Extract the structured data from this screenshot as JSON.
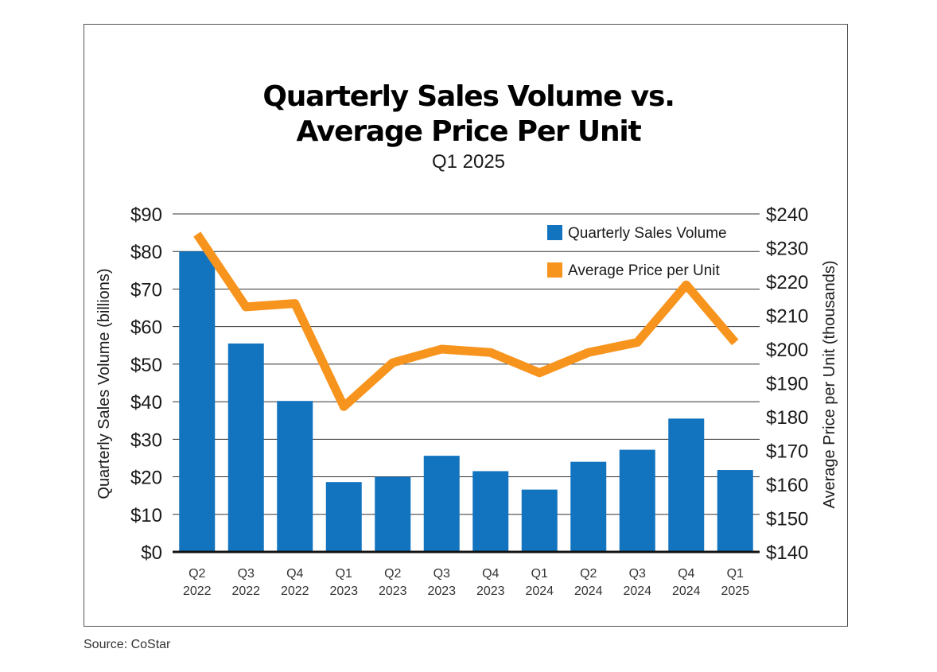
{
  "title_lines": [
    "Quarterly Sales Volume vs.",
    "Average Price Per Unit"
  ],
  "subtitle": "Q1 2025",
  "source": "Source: CoStar",
  "chart_data": {
    "type": "bar",
    "categories": [
      [
        "Q2",
        "2022"
      ],
      [
        "Q3",
        "2022"
      ],
      [
        "Q4",
        "2022"
      ],
      [
        "Q1",
        "2023"
      ],
      [
        "Q2",
        "2023"
      ],
      [
        "Q3",
        "2023"
      ],
      [
        "Q4",
        "2023"
      ],
      [
        "Q1",
        "2024"
      ],
      [
        "Q2",
        "2024"
      ],
      [
        "Q3",
        "2024"
      ],
      [
        "Q4",
        "2024"
      ],
      [
        "Q1",
        "2025"
      ]
    ],
    "series": [
      {
        "name": "Quarterly Sales Volume",
        "type": "bar",
        "axis": "left",
        "color": "#1273be",
        "values": [
          80,
          55.5,
          40.2,
          18.6,
          20,
          25.6,
          21.5,
          16.6,
          24,
          27.2,
          35.5,
          21.8
        ]
      },
      {
        "name": "Average Price per Unit",
        "type": "line",
        "axis": "right",
        "color": "#f7941d",
        "values": [
          234,
          212.5,
          213.5,
          183,
          196,
          200,
          199,
          193,
          199,
          202,
          219,
          202
        ]
      }
    ],
    "y_left": {
      "label": "Quarterly Sales Volume (billions)",
      "range": [
        0,
        90
      ],
      "ticks": [
        "$0",
        "$10",
        "$20",
        "$30",
        "$40",
        "$50",
        "$60",
        "$70",
        "$80",
        "$90"
      ]
    },
    "y_right": {
      "label": "Average Price per Unit (thousands)",
      "range": [
        140,
        240
      ],
      "ticks": [
        "$140",
        "$150",
        "$160",
        "$170",
        "$180",
        "$190",
        "$200",
        "$210",
        "$220",
        "$230",
        "$240"
      ]
    },
    "legend": [
      "Quarterly Sales Volume",
      "Average Price per Unit"
    ],
    "legend_position": "top-right",
    "grid": true
  }
}
